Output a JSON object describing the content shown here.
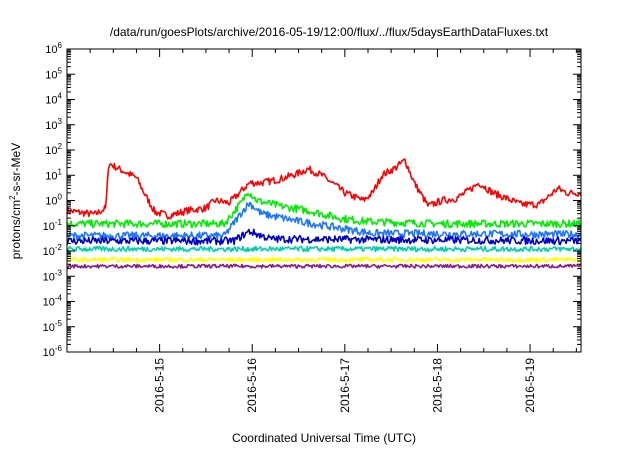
{
  "chart_data": {
    "type": "line",
    "title": "/data/run/goesPlots/archive/2016-05-19/12:00/flux/../flux/5daysEarthDataFluxes.txt",
    "xlabel": "Coordinated Universal Time (UTC)",
    "ylabel": {
      "base": "protons/cm",
      "sup": "2",
      "rest": "-s-sr-MeV"
    },
    "x_ticks": [
      "2016-5-15",
      "2016-5-16",
      "2016-5-17",
      "2016-5-18",
      "2016-5-19"
    ],
    "xlim_days": [
      14.0,
      19.55
    ],
    "y_scale": "log",
    "ylim_exp": [
      -6,
      6
    ],
    "y_ticks_exp": [
      -6,
      -5,
      -4,
      -3,
      -2,
      -1,
      0,
      1,
      2,
      3,
      4,
      5,
      6
    ],
    "grid": false,
    "series": [
      {
        "color": "#ff0000",
        "noise": 0.28,
        "points": [
          [
            14.0,
            0.4
          ],
          [
            14.3,
            0.28
          ],
          [
            14.42,
            0.5
          ],
          [
            14.45,
            30
          ],
          [
            14.6,
            15
          ],
          [
            14.75,
            8
          ],
          [
            14.85,
            1.5
          ],
          [
            14.95,
            0.35
          ],
          [
            15.1,
            0.25
          ],
          [
            15.3,
            0.4
          ],
          [
            15.5,
            0.5
          ],
          [
            15.6,
            1.0
          ],
          [
            15.75,
            0.8
          ],
          [
            15.85,
            1.8
          ],
          [
            15.97,
            5
          ],
          [
            16.1,
            5
          ],
          [
            16.3,
            7
          ],
          [
            16.5,
            12
          ],
          [
            16.6,
            18
          ],
          [
            16.75,
            10
          ],
          [
            16.9,
            4
          ],
          [
            17.0,
            2
          ],
          [
            17.2,
            1.0
          ],
          [
            17.3,
            2
          ],
          [
            17.4,
            10
          ],
          [
            17.55,
            20
          ],
          [
            17.65,
            40
          ],
          [
            17.75,
            5
          ],
          [
            17.9,
            0.6
          ],
          [
            18.05,
            1.0
          ],
          [
            18.2,
            1.2
          ],
          [
            18.3,
            2
          ],
          [
            18.45,
            5
          ],
          [
            18.6,
            2
          ],
          [
            18.75,
            1.2
          ],
          [
            18.9,
            0.7
          ],
          [
            19.1,
            0.7
          ],
          [
            19.3,
            3
          ],
          [
            19.4,
            2
          ],
          [
            19.55,
            2
          ]
        ]
      },
      {
        "color": "#00ee00",
        "noise": 0.3,
        "points": [
          [
            14.0,
            0.12
          ],
          [
            15.7,
            0.12
          ],
          [
            15.9,
            1.0
          ],
          [
            15.95,
            2.5
          ],
          [
            16.05,
            1.0
          ],
          [
            16.3,
            0.6
          ],
          [
            16.6,
            0.4
          ],
          [
            16.95,
            0.2
          ],
          [
            17.2,
            0.15
          ],
          [
            18.0,
            0.12
          ],
          [
            19.55,
            0.12
          ]
        ]
      },
      {
        "color": "#1a78ff",
        "noise": 0.3,
        "points": [
          [
            14.0,
            0.04
          ],
          [
            15.7,
            0.04
          ],
          [
            15.9,
            0.4
          ],
          [
            15.97,
            0.8
          ],
          [
            16.1,
            0.3
          ],
          [
            16.5,
            0.15
          ],
          [
            16.95,
            0.08
          ],
          [
            17.3,
            0.05
          ],
          [
            19.55,
            0.045
          ]
        ]
      },
      {
        "color": "#0000c8",
        "noise": 0.3,
        "points": [
          [
            14.0,
            0.025
          ],
          [
            15.8,
            0.025
          ],
          [
            15.97,
            0.06
          ],
          [
            16.2,
            0.03
          ],
          [
            19.55,
            0.025
          ]
        ]
      },
      {
        "color": "#00d0b0",
        "noise": 0.2,
        "points": [
          [
            14.0,
            0.012
          ],
          [
            19.55,
            0.012
          ]
        ]
      },
      {
        "color": "#ffff00",
        "noise": 0.18,
        "points": [
          [
            14.0,
            0.0045
          ],
          [
            19.55,
            0.0045
          ]
        ]
      },
      {
        "color": "#8b1a89",
        "noise": 0.14,
        "points": [
          [
            14.0,
            0.0025
          ],
          [
            19.55,
            0.0025
          ]
        ]
      }
    ]
  }
}
